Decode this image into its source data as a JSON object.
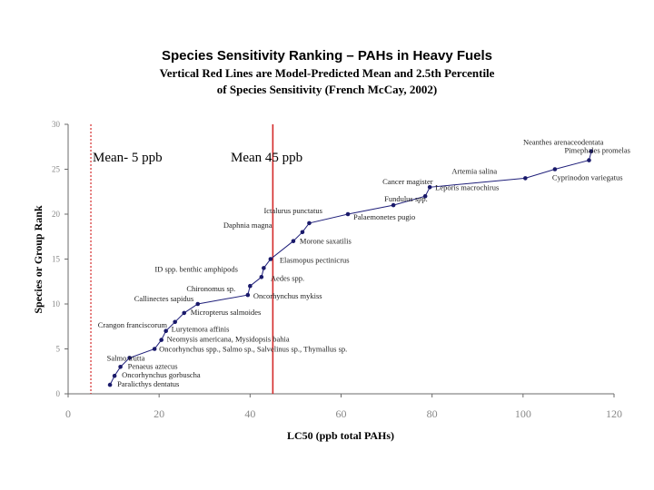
{
  "title": {
    "line1": "Species Sensitivity Ranking – PAHs in Heavy Fuels",
    "line2": "Vertical Red Lines are Model-Predicted Mean and 2.5th Percentile",
    "line3": "of Species Sensitivity (French McCay, 2002)"
  },
  "colors": {
    "series": "#1f1f7a",
    "marker": "#1a1a6b",
    "reference_lines": "#d42a2a",
    "axis": "#6b6b6b",
    "tick_labels": "#888888",
    "axis_titles": "#000000",
    "annotation": "#8b1a1a"
  },
  "chart_data": {
    "type": "scatter",
    "xlabel": "LC50 (ppb total PAHs)",
    "ylabel": "Species or Group Rank",
    "xlim": [
      0,
      120
    ],
    "ylim": [
      0,
      30
    ],
    "xticks": [
      0,
      20,
      40,
      60,
      80,
      100,
      120
    ],
    "yticks": [
      0,
      5,
      10,
      15,
      20,
      25,
      30
    ],
    "grid": false,
    "series": [
      {
        "points": [
          {
            "x": 9.2,
            "y": 1,
            "label": "Paralicthys dentatus"
          },
          {
            "x": 10.2,
            "y": 2,
            "label": "Oncorhynchus gorbuscha"
          },
          {
            "x": 11.5,
            "y": 3,
            "label": "Penaeus aztecus"
          },
          {
            "x": 13.5,
            "y": 4,
            "label": "Salmo trutta"
          },
          {
            "x": 19.0,
            "y": 5,
            "label": "Oncorhynchus spp., Salmo sp., Salvelinus sp., Thymallus sp."
          },
          {
            "x": 20.5,
            "y": 6,
            "label": "Neomysis americana, Mysidopsis bahia"
          },
          {
            "x": 21.5,
            "y": 7,
            "label": "Lurytemora affinis"
          },
          {
            "x": 23.5,
            "y": 8,
            "label": "Crangon franciscorum"
          },
          {
            "x": 25.5,
            "y": 9,
            "label": "Micropterus salmoides"
          },
          {
            "x": 28.5,
            "y": 10,
            "label": "Callinectes sapidus"
          },
          {
            "x": 39.5,
            "y": 11,
            "label": "Oncorhynchus mykiss"
          },
          {
            "x": 40.0,
            "y": 12,
            "label": "Chironomus sp."
          },
          {
            "x": 42.5,
            "y": 13,
            "label": "Aedes spp."
          },
          {
            "x": 43.0,
            "y": 14,
            "label": "ID spp. benthic amphipods"
          },
          {
            "x": 44.5,
            "y": 15,
            "label": "Elasmopus pectinicrus"
          },
          {
            "x": 49.5,
            "y": 17,
            "label": "Morone saxatilis"
          },
          {
            "x": 51.5,
            "y": 18,
            "label": "Daphnia magna"
          },
          {
            "x": 53.0,
            "y": 19,
            "label": "Ictalurus punctatus"
          },
          {
            "x": 61.5,
            "y": 20,
            "label": "Palaemonetes pugio"
          },
          {
            "x": 71.5,
            "y": 21,
            "label": "Fundulus spp."
          },
          {
            "x": 78.5,
            "y": 22,
            "label": "Cancer magister"
          },
          {
            "x": 79.5,
            "y": 23,
            "label": "Leporis macrochirus"
          },
          {
            "x": 100.5,
            "y": 24,
            "label": "Artemia salina"
          },
          {
            "x": 107.0,
            "y": 25,
            "label": "Cyprinodon variegatus"
          },
          {
            "x": 114.5,
            "y": 26,
            "label": "Pimephales promelas"
          },
          {
            "x": 115.0,
            "y": 27,
            "label": "Neanthes arenaceodentata"
          }
        ]
      }
    ],
    "reference_lines": [
      {
        "x": 5,
        "label": "Mean- 5 ppb",
        "style": "dotted"
      },
      {
        "x": 45,
        "label": "Mean 45 ppb",
        "style": "solid"
      }
    ]
  }
}
